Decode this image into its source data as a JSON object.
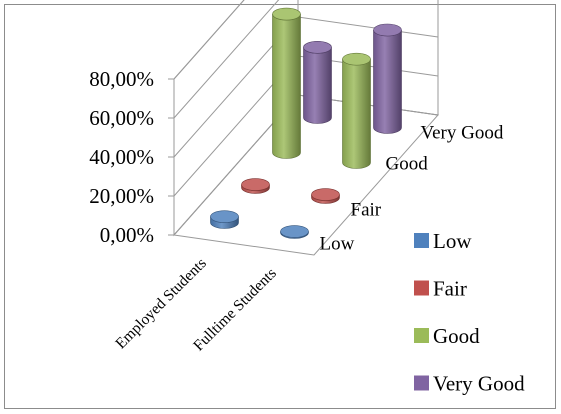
{
  "chart_data": {
    "type": "bar",
    "style": "3d-cylinder",
    "title": "",
    "xlabel": "",
    "ylabel": "",
    "categories": [
      "Employed Students",
      "Fulltime Students"
    ],
    "depth_categories": [
      "Low",
      "Fair",
      "Good",
      "Very Good"
    ],
    "series": [
      {
        "name": "Low",
        "color": "#4f81bd",
        "values": [
          3,
          0.5
        ]
      },
      {
        "name": "Fair",
        "color": "#c0504d",
        "values": [
          1.5,
          1.5
        ]
      },
      {
        "name": "Good",
        "color": "#9bbb59",
        "values": [
          71,
          53
        ]
      },
      {
        "name": "Very Good",
        "color": "#8064a2",
        "values": [
          36,
          50
        ]
      }
    ],
    "y_ticks": [
      "0,00%",
      "20,00%",
      "40,00%",
      "60,00%",
      "80,00%"
    ],
    "ylim": [
      0,
      80
    ],
    "y_unit": "%",
    "grid": true,
    "legend_position": "right"
  }
}
